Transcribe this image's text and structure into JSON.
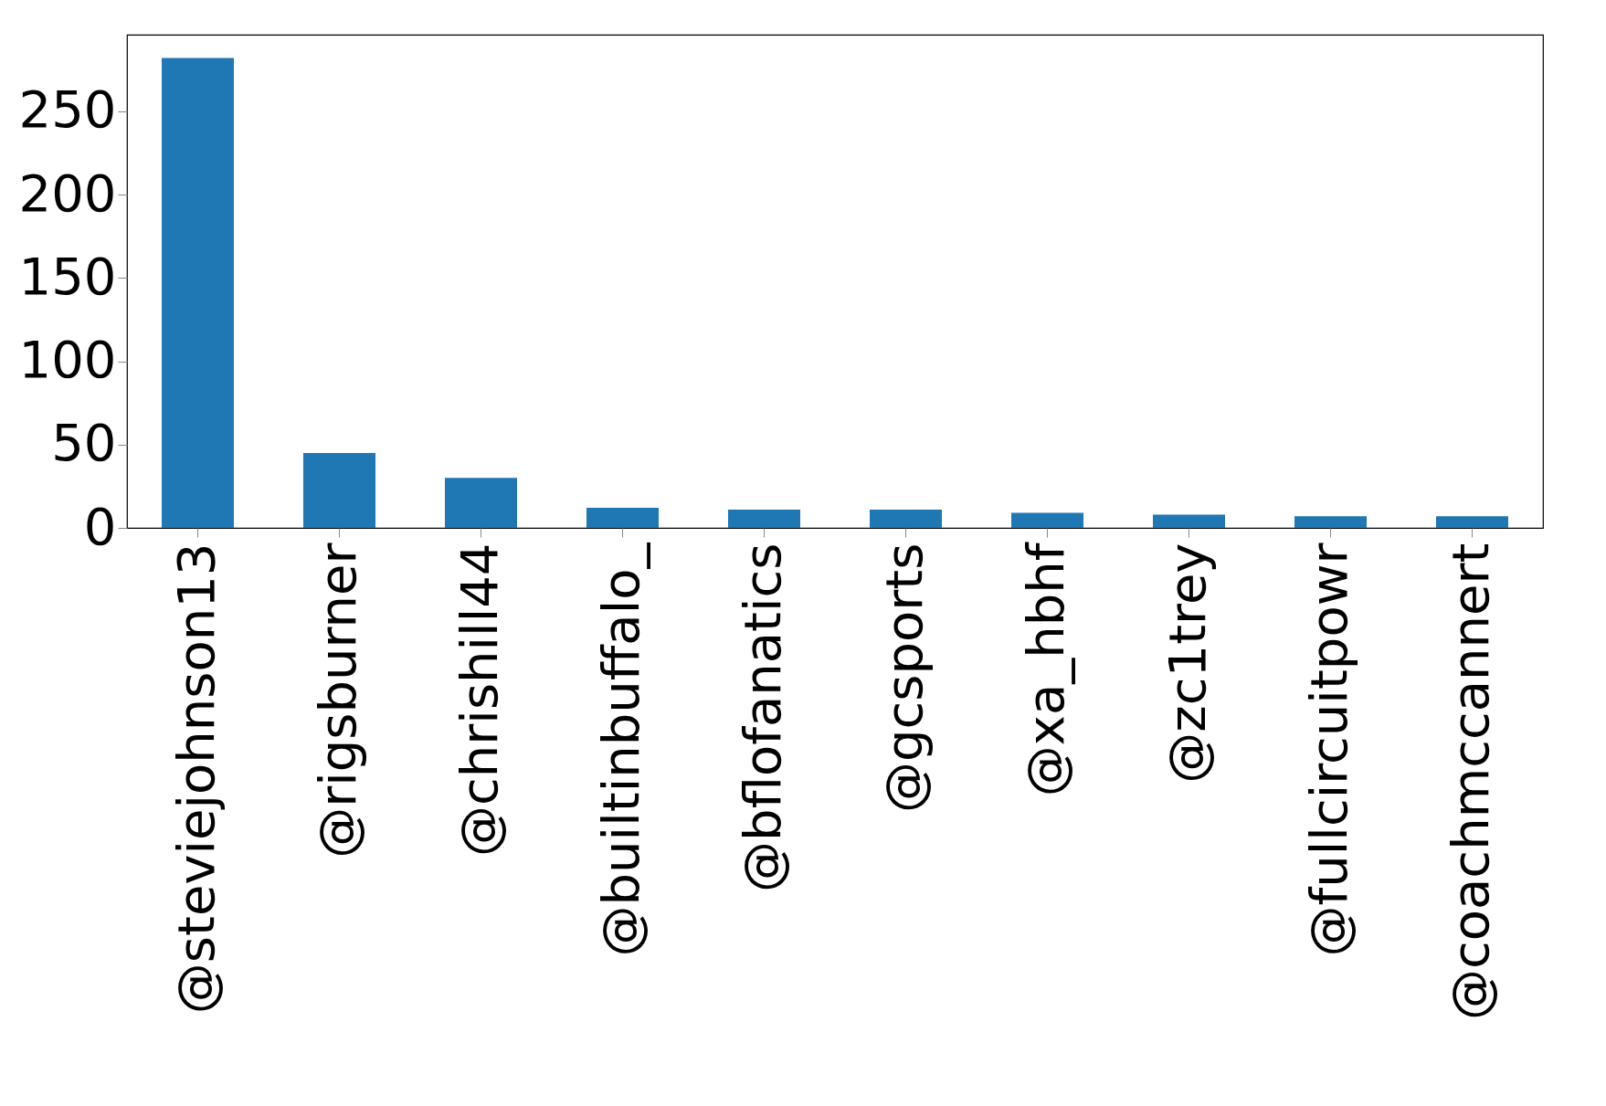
{
  "chart_data": {
    "type": "bar",
    "categories": [
      "@steviejohnson13",
      "@rigsburner",
      "@chrishill44",
      "@builtinbuffalo_",
      "@bflofanatics",
      "@gcsports",
      "@xa_hbhf",
      "@zc1trey",
      "@fullcircuitpowr",
      "@coachmccannert"
    ],
    "values": [
      282,
      45,
      30,
      12,
      11,
      11,
      9,
      8,
      7,
      7
    ],
    "color": "#1f77b4",
    "ylim": [
      0,
      296
    ],
    "yticks": [
      0,
      50,
      100,
      150,
      200,
      250
    ],
    "grid": false
  }
}
